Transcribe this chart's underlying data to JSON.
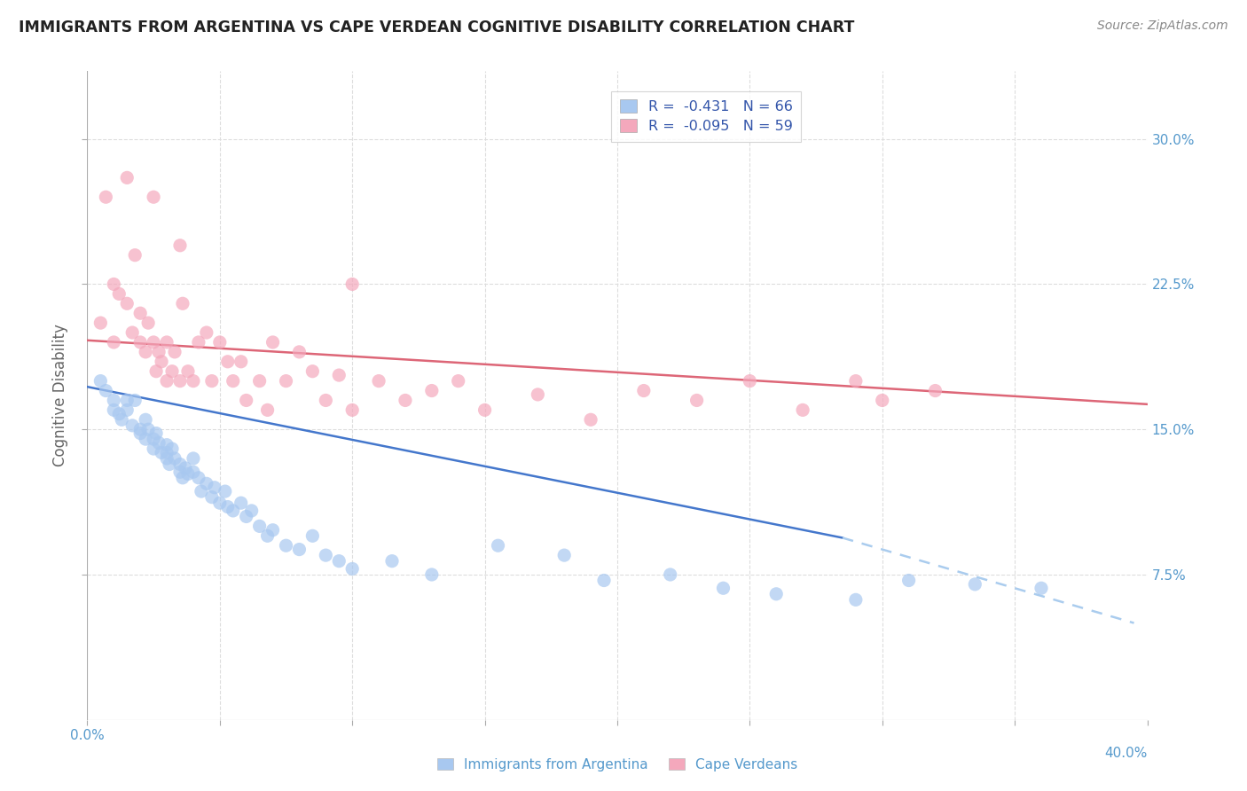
{
  "title": "IMMIGRANTS FROM ARGENTINA VS CAPE VERDEAN COGNITIVE DISABILITY CORRELATION CHART",
  "source": "Source: ZipAtlas.com",
  "ylabel": "Cognitive Disability",
  "yticks": [
    "7.5%",
    "15.0%",
    "22.5%",
    "30.0%"
  ],
  "ytick_vals": [
    0.075,
    0.15,
    0.225,
    0.3
  ],
  "xlim": [
    0.0,
    0.4
  ],
  "ylim": [
    0.0,
    0.335
  ],
  "legend_blue_r": "-0.431",
  "legend_blue_n": "66",
  "legend_pink_r": "-0.095",
  "legend_pink_n": "59",
  "legend_label_blue": "Immigrants from Argentina",
  "legend_label_pink": "Cape Verdeans",
  "blue_color": "#A8C8F0",
  "pink_color": "#F4A8BC",
  "trendline_blue_color": "#4477CC",
  "trendline_pink_color": "#DD6677",
  "trendline_dashed_color": "#AACCEE",
  "background_color": "#FFFFFF",
  "grid_color": "#DDDDDD",
  "title_color": "#222222",
  "axis_label_color": "#5599CC",
  "blue_scatter": {
    "x": [
      0.005,
      0.007,
      0.01,
      0.01,
      0.012,
      0.013,
      0.015,
      0.015,
      0.017,
      0.018,
      0.02,
      0.02,
      0.022,
      0.022,
      0.023,
      0.025,
      0.025,
      0.026,
      0.027,
      0.028,
      0.03,
      0.03,
      0.03,
      0.031,
      0.032,
      0.033,
      0.035,
      0.035,
      0.036,
      0.037,
      0.038,
      0.04,
      0.04,
      0.042,
      0.043,
      0.045,
      0.047,
      0.048,
      0.05,
      0.052,
      0.053,
      0.055,
      0.058,
      0.06,
      0.062,
      0.065,
      0.068,
      0.07,
      0.075,
      0.08,
      0.085,
      0.09,
      0.095,
      0.1,
      0.115,
      0.13,
      0.155,
      0.18,
      0.195,
      0.22,
      0.24,
      0.26,
      0.29,
      0.31,
      0.335,
      0.36
    ],
    "y": [
      0.175,
      0.17,
      0.165,
      0.16,
      0.158,
      0.155,
      0.165,
      0.16,
      0.152,
      0.165,
      0.15,
      0.148,
      0.155,
      0.145,
      0.15,
      0.145,
      0.14,
      0.148,
      0.143,
      0.138,
      0.135,
      0.142,
      0.138,
      0.132,
      0.14,
      0.135,
      0.128,
      0.132,
      0.125,
      0.13,
      0.127,
      0.135,
      0.128,
      0.125,
      0.118,
      0.122,
      0.115,
      0.12,
      0.112,
      0.118,
      0.11,
      0.108,
      0.112,
      0.105,
      0.108,
      0.1,
      0.095,
      0.098,
      0.09,
      0.088,
      0.095,
      0.085,
      0.082,
      0.078,
      0.082,
      0.075,
      0.09,
      0.085,
      0.072,
      0.075,
      0.068,
      0.065,
      0.062,
      0.072,
      0.07,
      0.068
    ]
  },
  "pink_scatter": {
    "x": [
      0.005,
      0.007,
      0.01,
      0.01,
      0.012,
      0.015,
      0.017,
      0.018,
      0.02,
      0.02,
      0.022,
      0.023,
      0.025,
      0.026,
      0.027,
      0.028,
      0.03,
      0.03,
      0.032,
      0.033,
      0.035,
      0.036,
      0.038,
      0.04,
      0.042,
      0.045,
      0.047,
      0.05,
      0.053,
      0.055,
      0.058,
      0.06,
      0.065,
      0.068,
      0.07,
      0.075,
      0.08,
      0.085,
      0.09,
      0.095,
      0.1,
      0.11,
      0.12,
      0.13,
      0.14,
      0.15,
      0.17,
      0.19,
      0.21,
      0.23,
      0.25,
      0.27,
      0.3,
      0.32,
      0.015,
      0.025,
      0.035,
      0.1,
      0.29
    ],
    "y": [
      0.205,
      0.27,
      0.225,
      0.195,
      0.22,
      0.215,
      0.2,
      0.24,
      0.21,
      0.195,
      0.19,
      0.205,
      0.195,
      0.18,
      0.19,
      0.185,
      0.175,
      0.195,
      0.18,
      0.19,
      0.175,
      0.215,
      0.18,
      0.175,
      0.195,
      0.2,
      0.175,
      0.195,
      0.185,
      0.175,
      0.185,
      0.165,
      0.175,
      0.16,
      0.195,
      0.175,
      0.19,
      0.18,
      0.165,
      0.178,
      0.16,
      0.175,
      0.165,
      0.17,
      0.175,
      0.16,
      0.168,
      0.155,
      0.17,
      0.165,
      0.175,
      0.16,
      0.165,
      0.17,
      0.28,
      0.27,
      0.245,
      0.225,
      0.175
    ]
  },
  "trendline_blue": {
    "x_start": 0.0,
    "y_start": 0.172,
    "x_end": 0.36,
    "y_end": 0.068
  },
  "trendline_pink": {
    "x_start": 0.0,
    "y_start": 0.196,
    "x_end": 0.4,
    "y_end": 0.163
  },
  "trendline_dashed_start": 0.285,
  "trendline_dashed_start_y": 0.094,
  "trendline_dashed_end_x": 0.395,
  "trendline_dashed_end_y": 0.05
}
